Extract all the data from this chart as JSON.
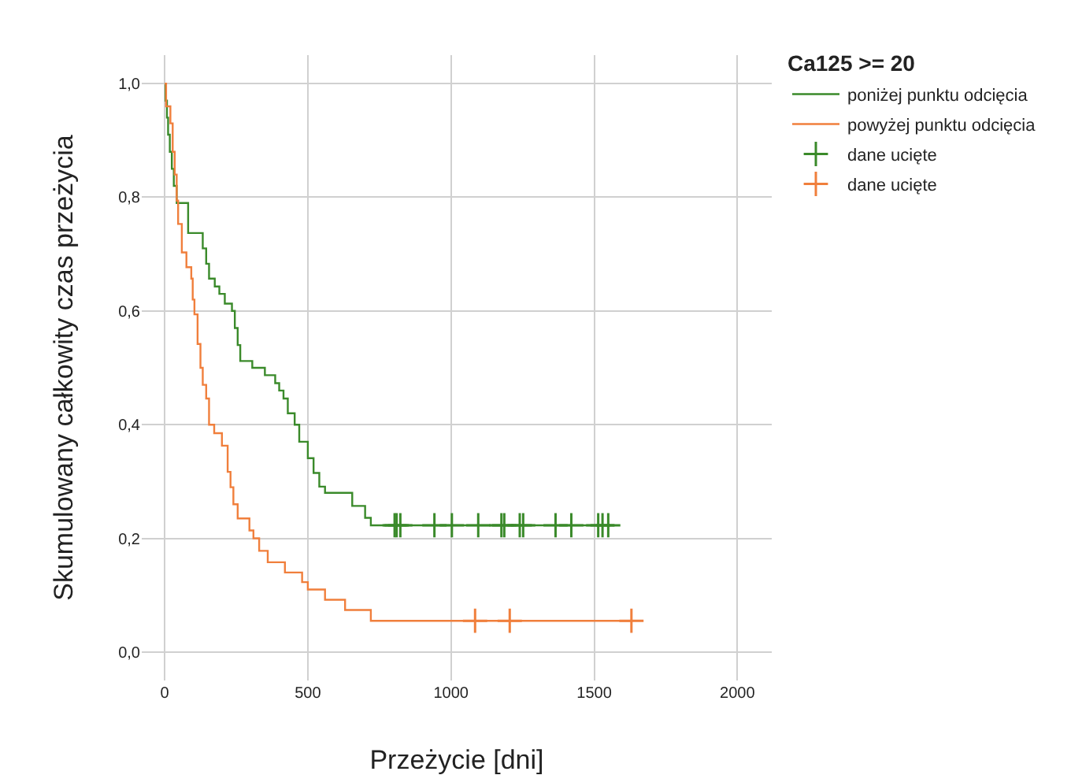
{
  "chart_data": {
    "type": "step",
    "xlabel": "Przeżycie [dni]",
    "ylabel": "Skumulowany całkowity czas przeżycia",
    "legend_title": "Ca125 >= 20",
    "xlim": [
      -80,
      2120
    ],
    "xticks": [
      0,
      500,
      1000,
      1500,
      2000
    ],
    "ylim": [
      -0.05,
      1.05
    ],
    "yticks": [
      {
        "value": 0,
        "label": "0,0"
      },
      {
        "value": 0.2,
        "label": "0,2"
      },
      {
        "value": 0.4,
        "label": "0,4"
      },
      {
        "value": 0.6,
        "label": "0,6"
      },
      {
        "value": 0.8,
        "label": "0,8"
      },
      {
        "value": 1,
        "label": "1,0"
      }
    ],
    "grid": true,
    "legend": "top right",
    "line_style": "solid",
    "series": [
      {
        "name": "poniżej punktu odcięcia",
        "color": "#3a8a2a",
        "marker": "none",
        "x": [
          0,
          3,
          8,
          12,
          18,
          25,
          32,
          42,
          82,
          133,
          145,
          155,
          175,
          191,
          210,
          235,
          245,
          255,
          264,
          306,
          350,
          386,
          400,
          415,
          430,
          454,
          470,
          500,
          520,
          540,
          560,
          655,
          700,
          720,
          1570
        ],
        "values": [
          1.0,
          0.97,
          0.94,
          0.91,
          0.88,
          0.85,
          0.82,
          0.79,
          0.737,
          0.71,
          0.683,
          0.657,
          0.643,
          0.63,
          0.613,
          0.6,
          0.57,
          0.54,
          0.512,
          0.5,
          0.487,
          0.473,
          0.46,
          0.446,
          0.42,
          0.4,
          0.37,
          0.341,
          0.315,
          0.291,
          0.28,
          0.257,
          0.236,
          0.223,
          0.223
        ]
      },
      {
        "name": "powyżej punktu odcięcia",
        "color": "#f07f3c",
        "marker": "none",
        "x": [
          0,
          5,
          20,
          28,
          35,
          42,
          47,
          60,
          76,
          93,
          98,
          104,
          115,
          125,
          133,
          145,
          155,
          173,
          200,
          220,
          230,
          240,
          255,
          296,
          310,
          330,
          360,
          420,
          480,
          500,
          560,
          630,
          720,
          1630
        ],
        "values": [
          1.0,
          0.96,
          0.93,
          0.88,
          0.84,
          0.794,
          0.753,
          0.703,
          0.677,
          0.657,
          0.62,
          0.594,
          0.542,
          0.5,
          0.47,
          0.446,
          0.4,
          0.385,
          0.363,
          0.317,
          0.29,
          0.26,
          0.235,
          0.214,
          0.2,
          0.178,
          0.158,
          0.14,
          0.123,
          0.11,
          0.092,
          0.074,
          0.055,
          0.055
        ]
      },
      {
        "name": "dane ucięte",
        "type": "scatter",
        "color": "#3a8a2a",
        "marker": "cross",
        "x": [
          803,
          810,
          823,
          942,
          1003,
          1095,
          1176,
          1186,
          1240,
          1252,
          1365,
          1420,
          1514,
          1529,
          1549
        ],
        "values": [
          0.223,
          0.223,
          0.223,
          0.223,
          0.223,
          0.223,
          0.223,
          0.223,
          0.223,
          0.223,
          0.223,
          0.223,
          0.223,
          0.223,
          0.223
        ]
      },
      {
        "name": "dane ucięte",
        "type": "scatter",
        "color": "#f07f3c",
        "marker": "cross",
        "x": [
          1084,
          1205,
          1630
        ],
        "values": [
          0.055,
          0.055,
          0.055
        ]
      }
    ]
  }
}
